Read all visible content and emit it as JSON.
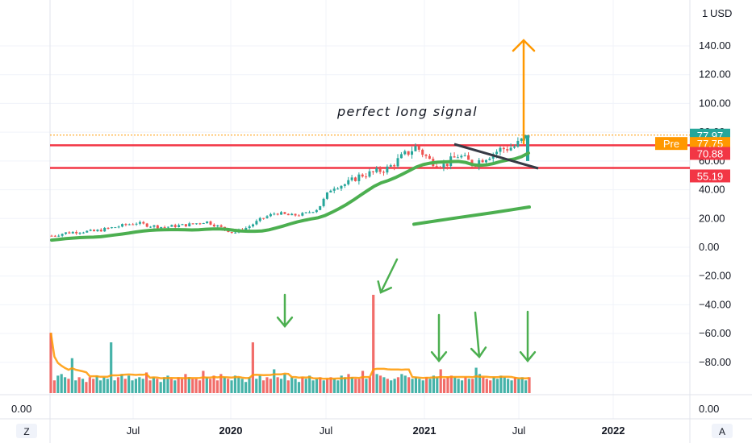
{
  "currency": "USD",
  "annotation": "perfect long signal",
  "chart_data": {
    "type": "candlestick",
    "y_axis": {
      "ticks": [
        "140.00",
        "120.00",
        "100.00",
        "80.00",
        "60.00",
        "40.00",
        "20.00",
        "0.00",
        "−20.00",
        "−40.00",
        "−60.00",
        "−80.00"
      ],
      "tick_values": [
        140,
        120,
        100,
        80,
        60,
        40,
        20,
        0,
        -20,
        -40,
        -60,
        -80
      ],
      "range": [
        -97,
        163
      ]
    },
    "x_axis": {
      "ticks": [
        "Jul",
        "2020",
        "Jul",
        "2021",
        "Jul",
        "2022"
      ]
    },
    "lower_pane": {
      "ticks": [
        "0.00"
      ]
    },
    "price_labels": [
      {
        "text": "77.97",
        "value": 77.97,
        "color": "#26a69a"
      },
      {
        "text": "Pre",
        "value": 77.75,
        "color": "#ff9800"
      },
      {
        "text": "77.75",
        "value": 77.75,
        "color": "#ff9800"
      },
      {
        "text": "70.88",
        "value": 70.88,
        "color": "#f23645"
      },
      {
        "text": "55.19",
        "value": 55.19,
        "color": "#f23645"
      }
    ],
    "horizontal_lines": [
      {
        "value": 70.88,
        "color": "#f23645"
      },
      {
        "value": 55.19,
        "color": "#f23645"
      },
      {
        "value": 77.97,
        "color": "#ff9800",
        "style": "dotted"
      }
    ],
    "price_series": [
      {
        "t": 0,
        "v": 8
      },
      {
        "t": 4,
        "v": 10
      },
      {
        "t": 8,
        "v": 11
      },
      {
        "t": 12,
        "v": 11
      },
      {
        "t": 16,
        "v": 13
      },
      {
        "t": 20,
        "v": 15
      },
      {
        "t": 24,
        "v": 17
      },
      {
        "t": 28,
        "v": 15
      },
      {
        "t": 32,
        "v": 14
      },
      {
        "t": 36,
        "v": 15
      },
      {
        "t": 40,
        "v": 16
      },
      {
        "t": 44,
        "v": 18
      },
      {
        "t": 48,
        "v": 14
      },
      {
        "t": 52,
        "v": 10
      },
      {
        "t": 56,
        "v": 14
      },
      {
        "t": 60,
        "v": 20
      },
      {
        "t": 64,
        "v": 24
      },
      {
        "t": 68,
        "v": 22
      },
      {
        "t": 72,
        "v": 23
      },
      {
        "t": 76,
        "v": 27
      },
      {
        "t": 80,
        "v": 42
      },
      {
        "t": 84,
        "v": 44
      },
      {
        "t": 88,
        "v": 50
      },
      {
        "t": 92,
        "v": 52
      },
      {
        "t": 96,
        "v": 55
      },
      {
        "t": 100,
        "v": 63
      },
      {
        "t": 104,
        "v": 70
      },
      {
        "t": 108,
        "v": 60
      },
      {
        "t": 112,
        "v": 57
      },
      {
        "t": 116,
        "v": 64
      },
      {
        "t": 120,
        "v": 58
      },
      {
        "t": 124,
        "v": 63
      },
      {
        "t": 128,
        "v": 68
      },
      {
        "t": 132,
        "v": 70
      },
      {
        "t": 136,
        "v": 78
      }
    ],
    "volume_bars": [
      38,
      8,
      11,
      12,
      10,
      9,
      22,
      8,
      10,
      9,
      7,
      10,
      9,
      11,
      8,
      10,
      9,
      32,
      8,
      10,
      12,
      9,
      11,
      8,
      9,
      10,
      9,
      13,
      8,
      10,
      9,
      7,
      10,
      11,
      9,
      8,
      10,
      9,
      12,
      10,
      9,
      9,
      8,
      14,
      10,
      9,
      11,
      8,
      12,
      10,
      9,
      8,
      11,
      10,
      9,
      7,
      10,
      32,
      9,
      11,
      8,
      10,
      9,
      15,
      10,
      9,
      12,
      8,
      10,
      9,
      7,
      10,
      9,
      11,
      8,
      9,
      10,
      8,
      9,
      10,
      9,
      8,
      11,
      10,
      12,
      10,
      9,
      9,
      14,
      9,
      10,
      62,
      12,
      11,
      10,
      9,
      8,
      9,
      10,
      12,
      11,
      10,
      9,
      10,
      9,
      8,
      10,
      9,
      11,
      10,
      15,
      9,
      10,
      11,
      10,
      9,
      8,
      10,
      9,
      9,
      16,
      12,
      10,
      9,
      8,
      10,
      9,
      11,
      10,
      9,
      8,
      10,
      9,
      10,
      8,
      10
    ],
    "volume_colors_seed": 7,
    "moving_averages": [
      {
        "period": "short",
        "color": "#4caf50"
      },
      {
        "period": "long",
        "color": "#4caf50"
      }
    ],
    "arrows": {
      "color_up": "#ff9800",
      "color_down": "#4caf50"
    }
  },
  "bottom_left": "Z",
  "bottom_right": "A"
}
